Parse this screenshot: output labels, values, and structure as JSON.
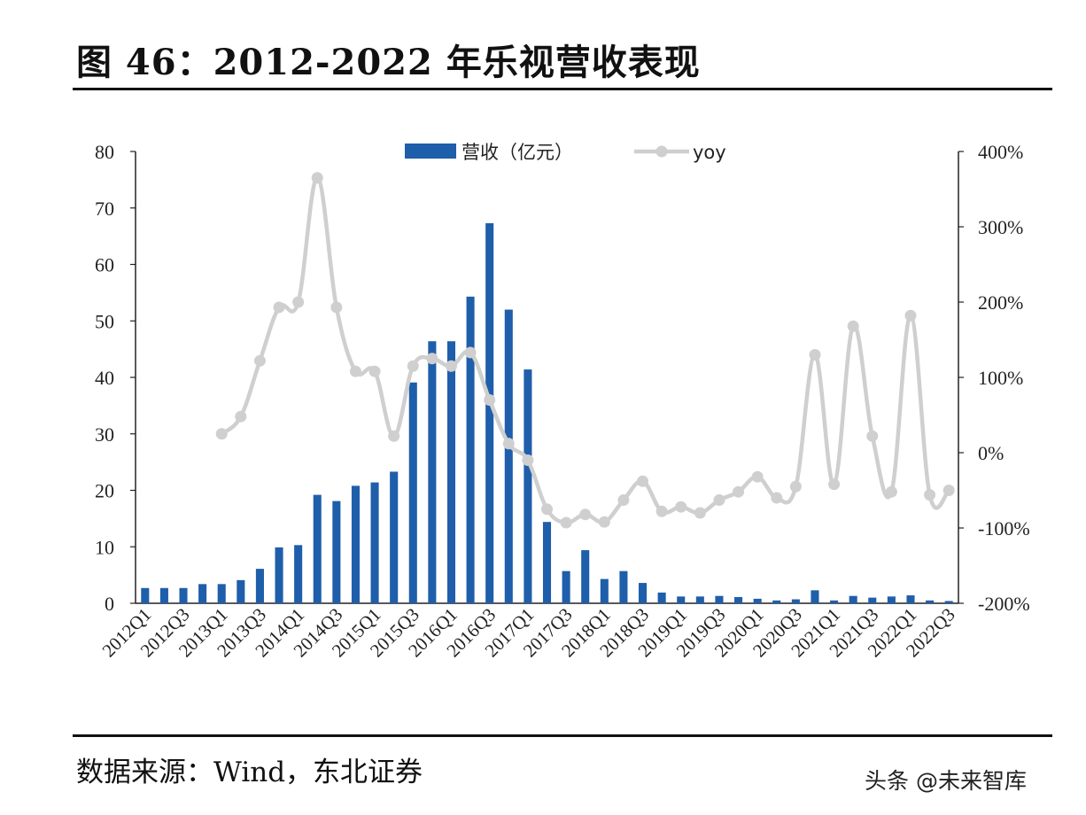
{
  "title": "图 46：2012-2022 年乐视营收表现",
  "source_note": "数据来源：Wind，东北证券",
  "watermark": "头条 @未来智库",
  "colors": {
    "bar": "#1f5eaa",
    "line": "#cfcfcf",
    "axis": "#222222"
  },
  "chart_data": {
    "type": "bar+line",
    "title": "",
    "categories": [
      "2012Q1",
      "2012Q2",
      "2012Q3",
      "2012Q4",
      "2013Q1",
      "2013Q2",
      "2013Q3",
      "2013Q4",
      "2014Q1",
      "2014Q2",
      "2014Q3",
      "2014Q4",
      "2015Q1",
      "2015Q2",
      "2015Q3",
      "2015Q4",
      "2016Q1",
      "2016Q2",
      "2016Q3",
      "2016Q4",
      "2017Q1",
      "2017Q2",
      "2017Q3",
      "2017Q4",
      "2018Q1",
      "2018Q2",
      "2018Q3",
      "2018Q4",
      "2019Q1",
      "2019Q2",
      "2019Q3",
      "2019Q4",
      "2020Q1",
      "2020Q2",
      "2020Q3",
      "2020Q4",
      "2021Q1",
      "2021Q2",
      "2021Q3",
      "2021Q4",
      "2022Q1",
      "2022Q2",
      "2022Q3"
    ],
    "tick_labels": [
      "2012Q1",
      "2012Q3",
      "2013Q1",
      "2013Q3",
      "2014Q1",
      "2014Q3",
      "2015Q1",
      "2015Q3",
      "2016Q1",
      "2016Q3",
      "2017Q1",
      "2017Q3",
      "2018Q1",
      "2018Q3",
      "2019Q1",
      "2019Q3",
      "2020Q1",
      "2020Q3",
      "2021Q1",
      "2021Q3",
      "2022Q1",
      "2022Q3"
    ],
    "series": [
      {
        "name": "营收（亿元）",
        "type": "bar",
        "axis": "left",
        "values": [
          2.7,
          2.7,
          2.7,
          3.4,
          3.4,
          4.1,
          6.1,
          9.9,
          10.3,
          19.2,
          18.1,
          20.8,
          21.4,
          23.3,
          39.1,
          46.4,
          46.4,
          54.3,
          67.3,
          52.0,
          41.4,
          14.4,
          5.7,
          9.4,
          4.3,
          5.7,
          3.6,
          1.9,
          1.2,
          1.2,
          1.3,
          1.1,
          0.8,
          0.5,
          0.7,
          2.3,
          0.5,
          1.3,
          1.0,
          1.2,
          1.4,
          0.5,
          0.4
        ]
      },
      {
        "name": "yoy",
        "type": "line",
        "axis": "right",
        "unit": "%",
        "values": [
          null,
          null,
          null,
          null,
          25,
          48,
          122,
          193,
          200,
          365,
          193,
          108,
          108,
          22,
          115,
          125,
          115,
          133,
          70,
          12,
          -10,
          -75,
          -93,
          -82,
          -92,
          -63,
          -38,
          -78,
          -72,
          -80,
          -63,
          -52,
          -32,
          -60,
          -45,
          130,
          -42,
          168,
          22,
          -52,
          182,
          -56,
          -50
        ]
      }
    ],
    "y_left": {
      "min": 0,
      "max": 80,
      "ticks": [
        0,
        10,
        20,
        30,
        40,
        50,
        60,
        70,
        80
      ]
    },
    "y_right": {
      "min": -200,
      "max": 400,
      "ticks": [
        "-200%",
        "-100%",
        "0%",
        "100%",
        "200%",
        "300%",
        "400%"
      ]
    },
    "legend": [
      "营收（亿元）",
      "yoy"
    ],
    "legend_position": "top-center"
  }
}
